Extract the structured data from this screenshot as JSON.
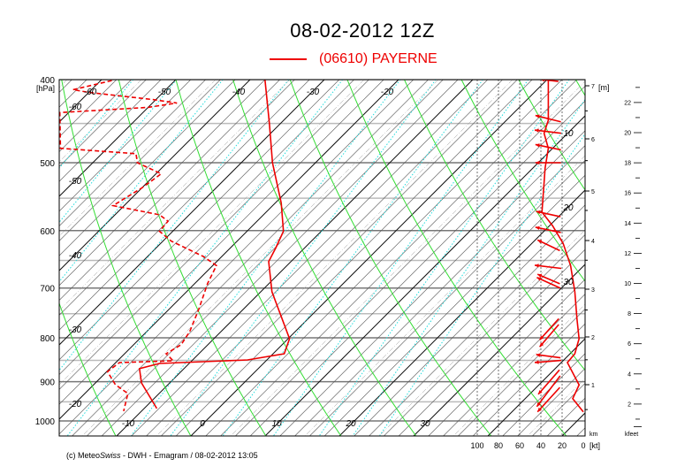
{
  "header": {
    "title": "08-02-2012  12Z",
    "legend_label": "(06610)  PAYERNE",
    "legend_color": "#ee0000"
  },
  "footer": {
    "prefix": "(c) Meteo",
    "italic": "Swiss",
    "suffix": " - DWH - Emagram /  08-02-2012  13:05"
  },
  "chart_data": {
    "type": "line",
    "subtype": "emagram",
    "title": "08-02-2012  12Z",
    "y_axis": {
      "label": "[hPa]",
      "scale": "log",
      "range": [
        400,
        1040
      ],
      "ticks": [
        400,
        500,
        600,
        700,
        800,
        900,
        1000
      ],
      "minor_lines": [
        450,
        550,
        650,
        750,
        850,
        950
      ]
    },
    "isotherm_labels": {
      "bottom": [
        -10,
        0,
        10,
        20,
        30
      ],
      "top": [
        -60,
        -50,
        -40,
        -30,
        -20
      ],
      "left": [
        -60,
        -50,
        -40,
        -30,
        -20
      ],
      "right": [
        10,
        20,
        30
      ]
    },
    "wind_axis": {
      "label": "[kt]",
      "ticks": [
        100,
        80,
        60,
        40,
        20,
        0
      ]
    },
    "height_km_axis": {
      "label": "[m]",
      "unit_label": "km",
      "ticks": [
        1,
        2,
        3,
        4,
        5,
        6,
        7
      ]
    },
    "height_kfeet_axis": {
      "unit_label": "kfeet",
      "ticks": [
        2,
        4,
        6,
        8,
        10,
        12,
        14,
        16,
        18,
        20,
        22
      ]
    },
    "grid": true,
    "colors": {
      "profile": "#ee0000",
      "dry_adiabat": "#33dd33",
      "mixing_ratio": "#22dddd",
      "isotherm": "#000000"
    },
    "series": [
      {
        "name": "(06610)  PAYERNE",
        "kind": "temperature",
        "style": "solid",
        "points": [
          [
            400,
            -38.0
          ],
          [
            450,
            -31.5
          ],
          [
            500,
            -25.8
          ],
          [
            557,
            -19.2
          ],
          [
            601,
            -15.1
          ],
          [
            628,
            -13.9
          ],
          [
            652,
            -13.0
          ],
          [
            707,
            -8.5
          ],
          [
            802,
            0.2
          ],
          [
            835,
            1.5
          ],
          [
            849,
            -2.6
          ],
          [
            857,
            -14.0
          ],
          [
            869,
            -16.0
          ],
          [
            903,
            -13.8
          ],
          [
            967,
            -8.3
          ]
        ]
      },
      {
        "kind": "dewpoint",
        "style": "dashed",
        "points": [
          [
            401,
            -58.5
          ],
          [
            411,
            -62.5
          ],
          [
            414,
            -60.0
          ],
          [
            422,
            -50.4
          ],
          [
            426,
            -46.7
          ],
          [
            431,
            -50.0
          ],
          [
            437,
            -61.2
          ],
          [
            481,
            -56.3
          ],
          [
            488,
            -45.4
          ],
          [
            500,
            -44.0
          ],
          [
            515,
            -39.3
          ],
          [
            535,
            -40.0
          ],
          [
            561,
            -41.5
          ],
          [
            575,
            -34.0
          ],
          [
            585,
            -32.0
          ],
          [
            601,
            -31.8
          ],
          [
            617,
            -28.9
          ],
          [
            643,
            -22.5
          ],
          [
            659,
            -19.5
          ],
          [
            691,
            -18.3
          ],
          [
            741,
            -16.0
          ],
          [
            787,
            -14.2
          ],
          [
            815,
            -13.6
          ],
          [
            835,
            -14.4
          ],
          [
            851,
            -12.5
          ],
          [
            855,
            -19.5
          ],
          [
            876,
            -19.9
          ],
          [
            907,
            -17.1
          ],
          [
            929,
            -14.2
          ],
          [
            974,
            -12.4
          ]
        ]
      },
      {
        "kind": "wind_speed_kt",
        "style": "solid",
        "points": [
          [
            400,
            33
          ],
          [
            446,
            33
          ],
          [
            462,
            37
          ],
          [
            481,
            33
          ],
          [
            507,
            36
          ],
          [
            571,
            39
          ],
          [
            592,
            29
          ],
          [
            621,
            19
          ],
          [
            659,
            12
          ],
          [
            707,
            8
          ],
          [
            760,
            6
          ],
          [
            802,
            4
          ],
          [
            835,
            8
          ],
          [
            855,
            15
          ],
          [
            908,
            4
          ],
          [
            942,
            10
          ],
          [
            976,
            0
          ]
        ]
      }
    ],
    "wind_arrows_kt": [
      {
        "p": 402,
        "u": -17,
        "v": 2
      },
      {
        "p": 448,
        "u": -24,
        "v": 6
      },
      {
        "p": 462,
        "u": -25,
        "v": 3
      },
      {
        "p": 483,
        "u": -24,
        "v": 5
      },
      {
        "p": 500,
        "u": -24,
        "v": 0
      },
      {
        "p": 578,
        "u": -23,
        "v": 5
      },
      {
        "p": 603,
        "u": -24,
        "v": 5
      },
      {
        "p": 633,
        "u": -21,
        "v": 10
      },
      {
        "p": 664,
        "u": -25,
        "v": 3
      },
      {
        "p": 700,
        "u": -22,
        "v": 10
      },
      {
        "p": 692,
        "u": -21,
        "v": 9
      },
      {
        "p": 760,
        "u": -18,
        "v": -20
      },
      {
        "p": 772,
        "u": -18,
        "v": -21
      },
      {
        "p": 844,
        "u": -23,
        "v": 3
      },
      {
        "p": 850,
        "u": -25,
        "v": -2
      },
      {
        "p": 872,
        "u": -20,
        "v": -23
      },
      {
        "p": 886,
        "u": -22,
        "v": -29
      },
      {
        "p": 914,
        "u": -21,
        "v": -23
      }
    ]
  }
}
